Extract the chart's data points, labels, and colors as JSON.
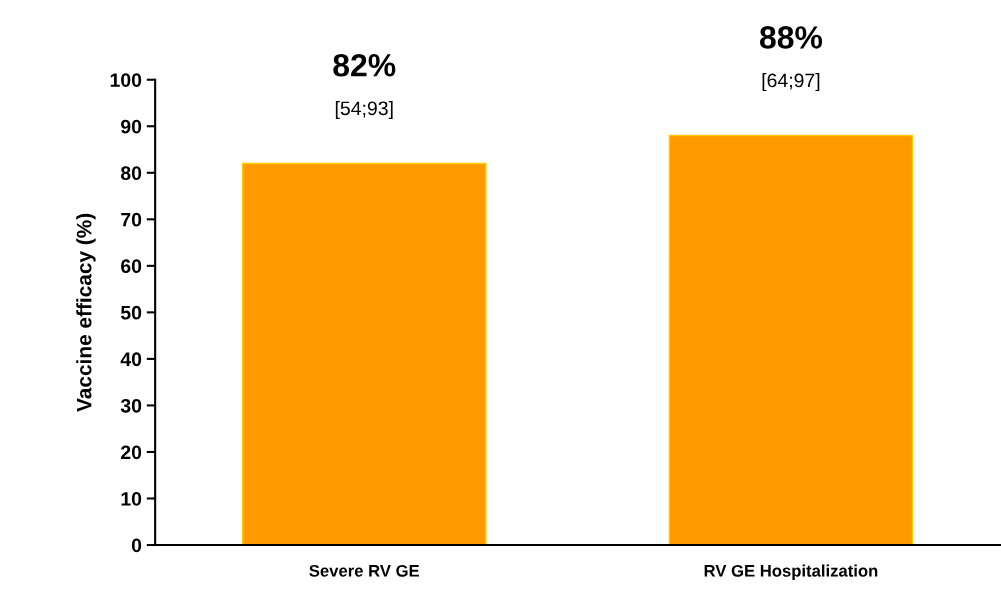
{
  "chart_data": {
    "type": "bar",
    "ylabel": "Vaccine efficacy (%)",
    "categories": [
      "Severe RV GE",
      "RV GE Hospitalization"
    ],
    "values": [
      82,
      88
    ],
    "color": "#ff9900",
    "value_labels": [
      "82%",
      "88%"
    ],
    "annotations": [
      {
        "text": "[54;93]",
        "x": "Severe RV GE",
        "y": 82
      },
      {
        "text": "[64;97]",
        "x": "RV GE Hospitalization",
        "y": 88
      }
    ],
    "ylim": [
      0,
      100
    ],
    "yticks": [
      0,
      10,
      20,
      30,
      40,
      50,
      60,
      70,
      80,
      90,
      100
    ],
    "grid": false,
    "legend": false
  }
}
